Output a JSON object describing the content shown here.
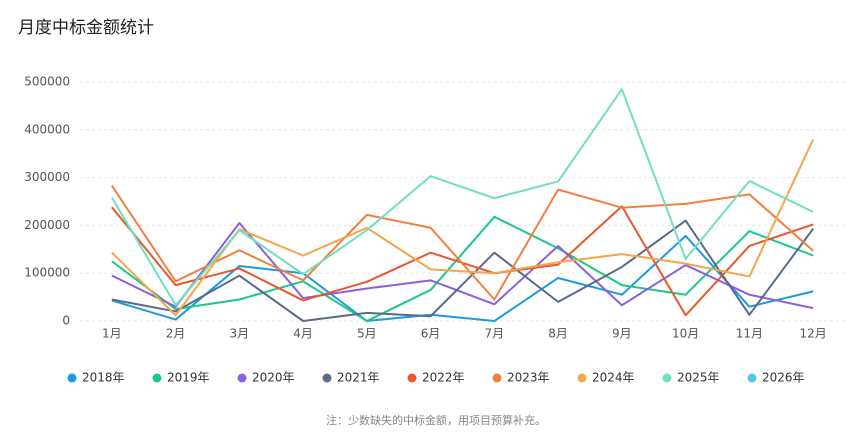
{
  "chart_data": {
    "type": "line",
    "title": "月度中标金额统计",
    "categories": [
      "1月",
      "2月",
      "3月",
      "4月",
      "5月",
      "6月",
      "7月",
      "8月",
      "9月",
      "10月",
      "11月",
      "12月"
    ],
    "series": [
      {
        "name": "2018年",
        "color": "#1a9be0",
        "values": [
          43000,
          3000,
          115000,
          100000,
          0,
          13000,
          0,
          90000,
          55000,
          178000,
          30000,
          62000
        ]
      },
      {
        "name": "2019年",
        "color": "#19c98a",
        "values": [
          125000,
          25000,
          45000,
          83000,
          0,
          65000,
          218000,
          152000,
          75000,
          55000,
          188000,
          137000
        ]
      },
      {
        "name": "2020年",
        "color": "#8b5fe0",
        "values": [
          95000,
          30000,
          205000,
          48000,
          68000,
          85000,
          35000,
          157000,
          33000,
          117000,
          55000,
          27000
        ]
      },
      {
        "name": "2021年",
        "color": "#5a6a8a",
        "values": [
          45000,
          20000,
          95000,
          0,
          17000,
          10000,
          143000,
          40000,
          113000,
          210000,
          13000,
          193000
        ]
      },
      {
        "name": "2022年",
        "color": "#e8582c",
        "values": [
          238000,
          75000,
          110000,
          43000,
          82000,
          143000,
          100000,
          118000,
          240000,
          12000,
          157000,
          202000
        ]
      },
      {
        "name": "2023年",
        "color": "#f08040",
        "values": [
          283000,
          83000,
          148000,
          85000,
          222000,
          195000,
          45000,
          275000,
          237000,
          245000,
          265000,
          147000
        ]
      },
      {
        "name": "2024年",
        "color": "#f5a54a",
        "values": [
          143000,
          12000,
          192000,
          137000,
          195000,
          108000,
          100000,
          123000,
          140000,
          120000,
          93000,
          380000
        ]
      },
      {
        "name": "2025年",
        "color": "#6ee0c0",
        "values": [
          258000,
          33000,
          190000,
          98000,
          190000,
          303000,
          257000,
          292000,
          485000,
          130000,
          293000,
          228000
        ]
      },
      {
        "name": "2026年",
        "color": "#5bc0f0",
        "values": [
          null,
          null,
          null,
          null,
          null,
          null,
          null,
          null,
          null,
          null,
          null,
          null
        ]
      }
    ],
    "ylim": [
      0,
      500000
    ],
    "yticks": [
      0,
      100000,
      200000,
      300000,
      400000,
      500000
    ],
    "grid": true,
    "note": "注：少数缺失的中标金额，用项目预算补充。"
  }
}
